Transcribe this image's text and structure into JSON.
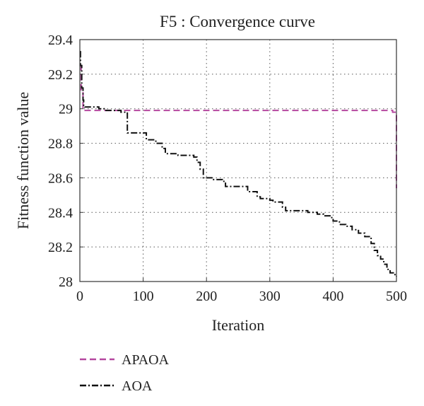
{
  "chart_data": {
    "type": "line",
    "title": "F5 : Convergence curve",
    "xlabel": "Iteration",
    "ylabel": "Fitness function value",
    "xlim": [
      0,
      500
    ],
    "ylim": [
      28,
      29.4
    ],
    "x_ticks": [
      0,
      100,
      200,
      300,
      400,
      500
    ],
    "y_ticks": [
      28,
      28.2,
      28.4,
      28.6,
      28.8,
      29,
      29.2,
      29.4
    ],
    "x_tick_labels": [
      "0",
      "100",
      "200",
      "300",
      "400",
      "500"
    ],
    "y_tick_labels": [
      "28",
      "28.2",
      "28.4",
      "28.6",
      "28.8",
      "29",
      "29.2",
      "29.4"
    ],
    "grid": true,
    "legend_position": "bottom-left",
    "series": [
      {
        "name": "APAOA",
        "color": "#b5479f",
        "dash": "dashed",
        "x": [
          0,
          2,
          5,
          490,
          494,
          500
        ],
        "y": [
          29.25,
          29.1,
          28.99,
          28.99,
          28.98,
          28.54
        ]
      },
      {
        "name": "AOA",
        "color": "#111111",
        "dash": "dashdot",
        "x": [
          0,
          1,
          3,
          5,
          6,
          8,
          10,
          30,
          40,
          60,
          65,
          70,
          75,
          100,
          105,
          120,
          125,
          130,
          135,
          145,
          155,
          170,
          180,
          185,
          190,
          195,
          210,
          225,
          230,
          255,
          265,
          270,
          280,
          285,
          300,
          305,
          315,
          320,
          325,
          330,
          350,
          360,
          365,
          375,
          385,
          395,
          400,
          410,
          420,
          430,
          440,
          450,
          460,
          465,
          470,
          475,
          480,
          485,
          490,
          495,
          500
        ],
        "y": [
          29.33,
          29.25,
          29.12,
          29.05,
          29.02,
          29.01,
          29.01,
          29.0,
          28.99,
          28.99,
          28.98,
          28.98,
          28.86,
          28.86,
          28.82,
          28.8,
          28.8,
          28.77,
          28.74,
          28.74,
          28.73,
          28.73,
          28.72,
          28.69,
          28.65,
          28.6,
          28.59,
          28.58,
          28.55,
          28.55,
          28.52,
          28.52,
          28.49,
          28.48,
          28.47,
          28.46,
          28.46,
          28.43,
          28.41,
          28.41,
          28.41,
          28.4,
          28.4,
          28.39,
          28.38,
          28.37,
          28.35,
          28.33,
          28.32,
          28.3,
          28.28,
          28.26,
          28.22,
          28.18,
          28.15,
          28.13,
          28.1,
          28.07,
          28.05,
          28.04,
          28.03
        ]
      }
    ]
  }
}
